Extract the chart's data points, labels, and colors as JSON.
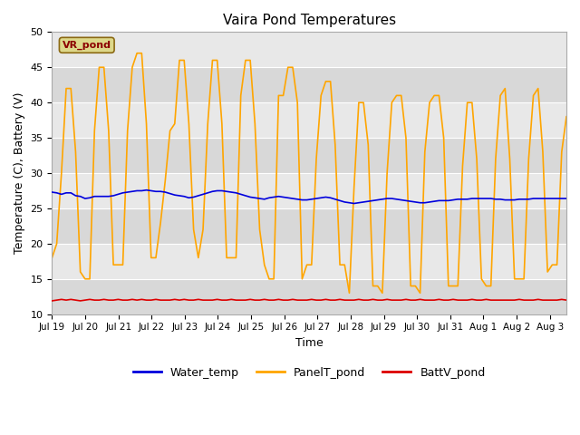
{
  "title": "Vaira Pond Temperatures",
  "xlabel": "Time",
  "ylabel": "Temperature (C), Battery (V)",
  "ylim": [
    10,
    50
  ],
  "background_color": "#e8e8e8",
  "site_label": "VR_pond",
  "site_label_color": "#8B0000",
  "site_label_bg": "#ddd88a",
  "x_tick_labels": [
    "Jul 19",
    "Jul 20",
    "Jul 21",
    "Jul 22",
    "Jul 23",
    "Jul 24",
    "Jul 25",
    "Jul 26",
    "Jul 27",
    "Jul 28",
    "Jul 29",
    "Jul 30",
    "Jul 31",
    "Aug 1",
    "Aug 2",
    "Aug 3"
  ],
  "water_color": "#0000dd",
  "panel_color": "#FFA500",
  "batt_color": "#dd0000",
  "legend_labels": [
    "Water_temp",
    "PanelT_pond",
    "BattV_pond"
  ],
  "water_temp": [
    27.3,
    27.2,
    27.0,
    27.2,
    27.2,
    26.8,
    26.7,
    26.4,
    26.5,
    26.7,
    26.7,
    26.7,
    26.7,
    26.8,
    27.0,
    27.2,
    27.3,
    27.4,
    27.5,
    27.5,
    27.6,
    27.5,
    27.4,
    27.4,
    27.3,
    27.1,
    26.9,
    26.8,
    26.7,
    26.5,
    26.6,
    26.8,
    27.0,
    27.2,
    27.4,
    27.5,
    27.5,
    27.4,
    27.3,
    27.2,
    27.0,
    26.8,
    26.6,
    26.5,
    26.4,
    26.3,
    26.5,
    26.6,
    26.7,
    26.6,
    26.5,
    26.4,
    26.3,
    26.2,
    26.2,
    26.3,
    26.4,
    26.5,
    26.6,
    26.5,
    26.3,
    26.1,
    25.9,
    25.8,
    25.7,
    25.8,
    25.9,
    26.0,
    26.1,
    26.2,
    26.3,
    26.4,
    26.4,
    26.3,
    26.2,
    26.1,
    26.0,
    25.9,
    25.8,
    25.8,
    25.9,
    26.0,
    26.1,
    26.1,
    26.1,
    26.2,
    26.3,
    26.3,
    26.3,
    26.4,
    26.4,
    26.4,
    26.4,
    26.4,
    26.3,
    26.3,
    26.2,
    26.2,
    26.2,
    26.3,
    26.3,
    26.3,
    26.4,
    26.4,
    26.4,
    26.4,
    26.4,
    26.4,
    26.4,
    26.4
  ],
  "panel_temp": [
    18,
    20,
    30,
    42,
    42,
    33,
    16,
    15,
    15,
    36,
    45,
    45,
    36,
    17,
    17,
    17,
    36,
    45,
    47,
    47,
    37,
    18,
    18,
    23,
    29,
    36,
    37,
    46,
    46,
    37,
    22,
    18,
    22,
    37,
    46,
    46,
    37,
    18,
    18,
    18,
    41,
    46,
    46,
    37,
    22,
    17,
    15,
    15,
    41,
    41,
    45,
    45,
    40,
    15,
    17,
    17,
    32,
    41,
    43,
    43,
    34,
    17,
    17,
    13,
    28,
    40,
    40,
    34,
    14,
    14,
    13,
    30,
    40,
    41,
    41,
    35,
    14,
    14,
    13,
    33,
    40,
    41,
    41,
    35,
    14,
    14,
    14,
    31,
    40,
    40,
    32,
    15,
    14,
    14,
    32,
    41,
    42,
    32,
    15,
    15,
    15,
    32,
    41,
    42,
    33,
    16,
    17,
    17,
    33,
    38
  ],
  "batt_v": [
    11.9,
    12.0,
    12.1,
    12.0,
    12.1,
    12.0,
    11.9,
    12.0,
    12.1,
    12.0,
    12.0,
    12.1,
    12.0,
    12.0,
    12.1,
    12.0,
    12.0,
    12.1,
    12.0,
    12.1,
    12.0,
    12.0,
    12.1,
    12.0,
    12.0,
    12.0,
    12.1,
    12.0,
    12.1,
    12.0,
    12.0,
    12.1,
    12.0,
    12.0,
    12.0,
    12.1,
    12.0,
    12.0,
    12.1,
    12.0,
    12.0,
    12.0,
    12.1,
    12.0,
    12.0,
    12.1,
    12.0,
    12.0,
    12.1,
    12.0,
    12.0,
    12.1,
    12.0,
    12.0,
    12.0,
    12.1,
    12.0,
    12.0,
    12.1,
    12.0,
    12.0,
    12.1,
    12.0,
    12.0,
    12.0,
    12.1,
    12.0,
    12.0,
    12.1,
    12.0,
    12.0,
    12.1,
    12.0,
    12.0,
    12.0,
    12.1,
    12.0,
    12.0,
    12.1,
    12.0,
    12.0,
    12.0,
    12.1,
    12.0,
    12.0,
    12.1,
    12.0,
    12.0,
    12.0,
    12.1,
    12.0,
    12.0,
    12.1,
    12.0,
    12.0,
    12.0,
    12.0,
    12.0,
    12.0,
    12.1,
    12.0,
    12.0,
    12.0,
    12.1,
    12.0,
    12.0,
    12.0,
    12.0,
    12.1,
    12.0
  ],
  "n_days": 15.5,
  "yticks": [
    10,
    15,
    20,
    25,
    30,
    35,
    40,
    45,
    50
  ],
  "band_colors": [
    "#d8d8d8",
    "#e8e8e8"
  ]
}
